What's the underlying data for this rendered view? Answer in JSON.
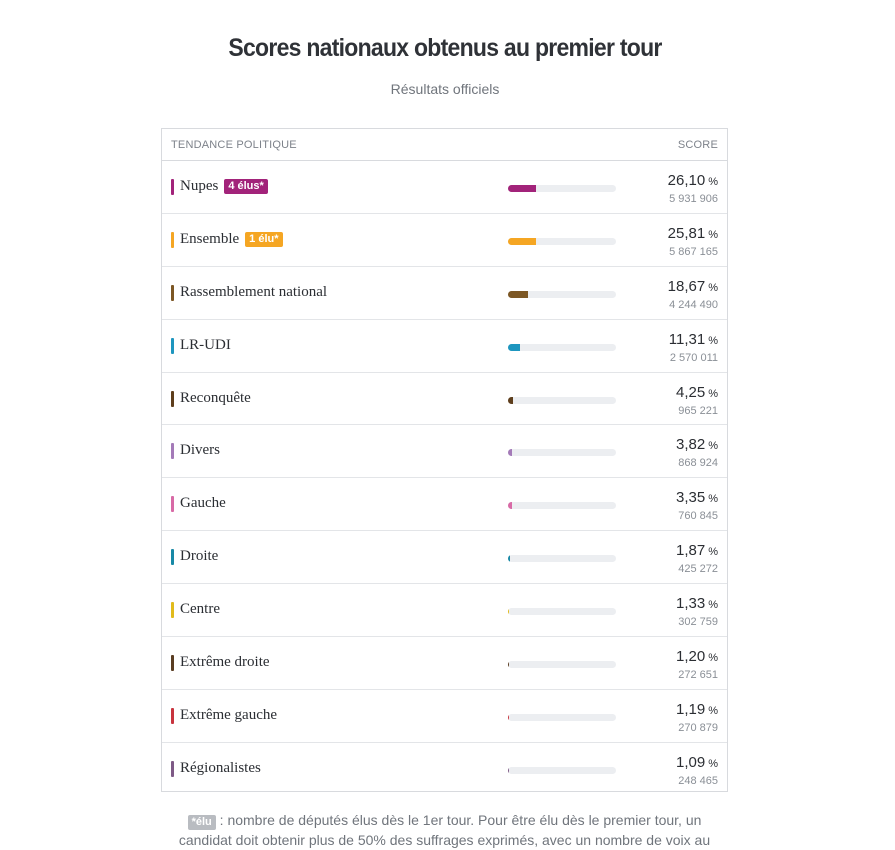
{
  "title": "Scores nationaux obtenus au premier tour",
  "subtitle": "Résultats officiels",
  "header": {
    "left": "TENDANCE POLITIQUE",
    "right": "SCORE"
  },
  "percent_sign": "%",
  "note": {
    "badge": "*élu",
    "line1": " : nombre de députés élus dès le 1er tour. Pour être élu dès le premier tour, un",
    "line2": "candidat doit obtenir plus de 50% des suffrages exprimés, avec un nombre de voix au"
  },
  "chart_data": {
    "type": "bar",
    "title": "Scores nationaux obtenus au premier tour",
    "subtitle": "Résultats officiels",
    "xlim": [
      0,
      100
    ],
    "rows": [
      {
        "name": "Nupes",
        "badge": "4 élus*",
        "score": "26,10",
        "value": 26.1,
        "votes": "5 931 906",
        "color": "#a2237a"
      },
      {
        "name": "Ensemble",
        "badge": "1 élu*",
        "score": "25,81",
        "value": 25.81,
        "votes": "5 867 165",
        "color": "#f5a623"
      },
      {
        "name": "Rassemblement national",
        "badge": "",
        "score": "18,67",
        "value": 18.67,
        "votes": "4 244 490",
        "color": "#7c5724"
      },
      {
        "name": "LR-UDI",
        "badge": "",
        "score": "11,31",
        "value": 11.31,
        "votes": "2 570 011",
        "color": "#1e96bf"
      },
      {
        "name": "Reconquête",
        "badge": "",
        "score": "4,25",
        "value": 4.25,
        "votes": "965 221",
        "color": "#5e3e1c"
      },
      {
        "name": "Divers",
        "badge": "",
        "score": "3,82",
        "value": 3.82,
        "votes": "868 924",
        "color": "#a47ab8"
      },
      {
        "name": "Gauche",
        "badge": "",
        "score": "3,35",
        "value": 3.35,
        "votes": "760 845",
        "color": "#d86aa6"
      },
      {
        "name": "Droite",
        "badge": "",
        "score": "1,87",
        "value": 1.87,
        "votes": "425 272",
        "color": "#1889a6"
      },
      {
        "name": "Centre",
        "badge": "",
        "score": "1,33",
        "value": 1.33,
        "votes": "302 759",
        "color": "#e1bb1c"
      },
      {
        "name": "Extrême droite",
        "badge": "",
        "score": "1,20",
        "value": 1.2,
        "votes": "272 651",
        "color": "#5a3d22"
      },
      {
        "name": "Extrême gauche",
        "badge": "",
        "score": "1,19",
        "value": 1.19,
        "votes": "270 879",
        "color": "#c8343e"
      },
      {
        "name": "Régionalistes",
        "badge": "",
        "score": "1,09",
        "value": 1.09,
        "votes": "248 465",
        "color": "#7e5a86"
      }
    ]
  }
}
